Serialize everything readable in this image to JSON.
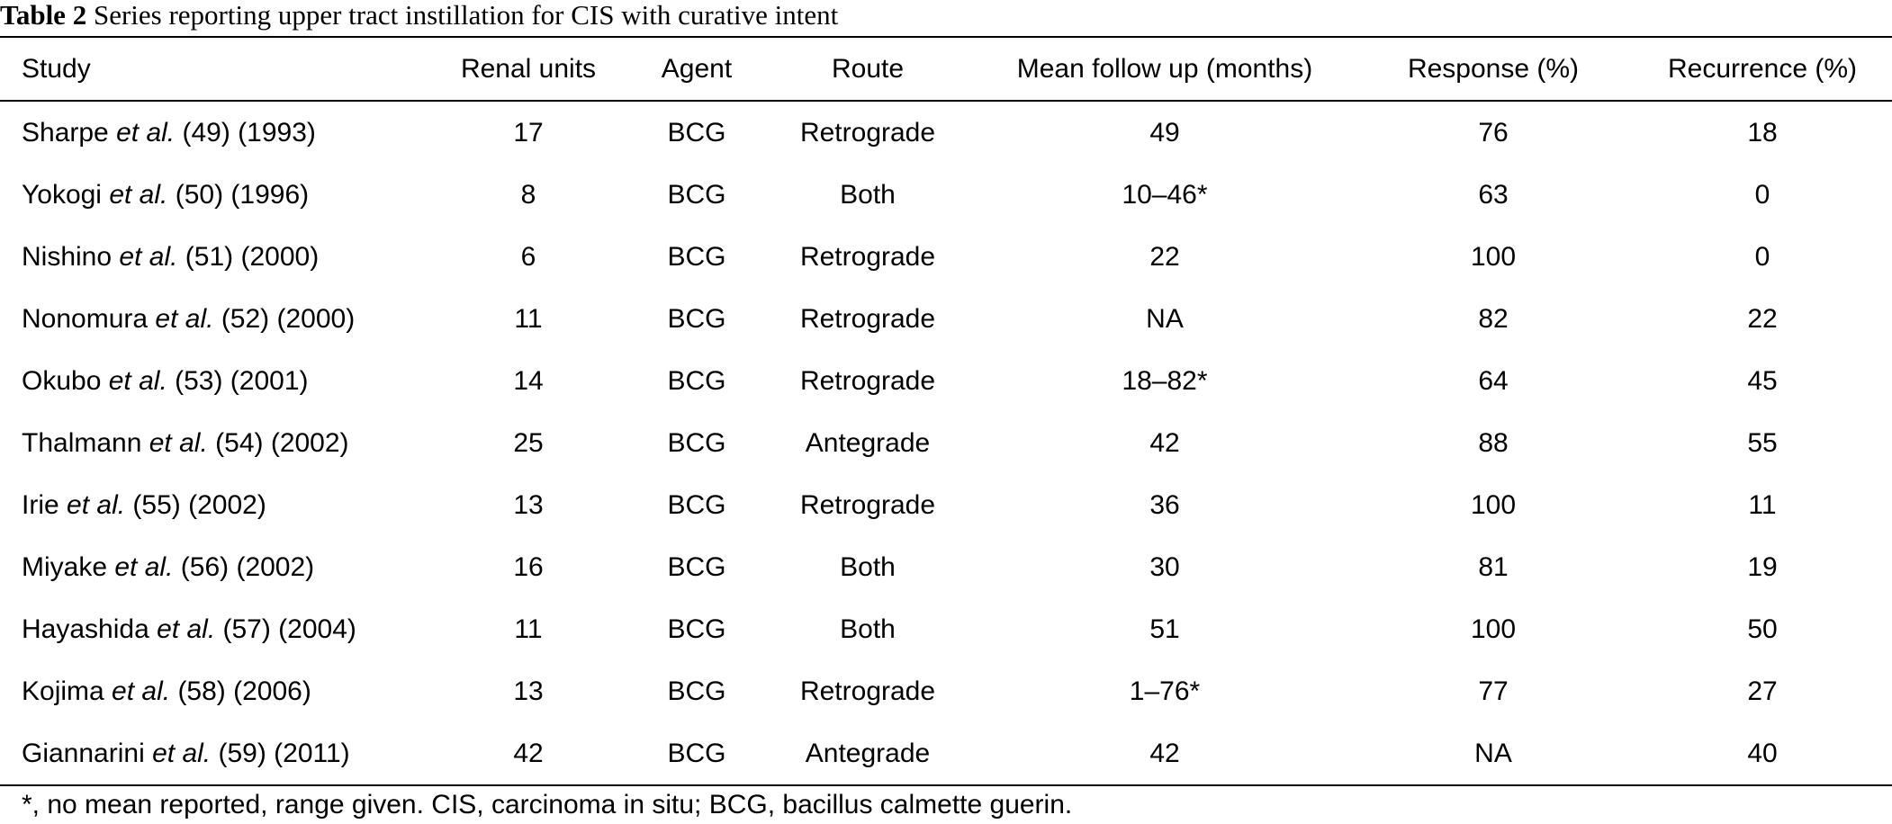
{
  "caption": {
    "label": "Table 2",
    "text": "Series reporting upper tract instillation for CIS with curative intent"
  },
  "table": {
    "headers": [
      "Study",
      "Renal units",
      "Agent",
      "Route",
      "Mean follow up (months)",
      "Response (%)",
      "Recurrence (%)"
    ],
    "rows": [
      {
        "author": "Sharpe",
        "etal": "et al.",
        "ref": "(49) (1993)",
        "renal_units": "17",
        "agent": "BCG",
        "route": "Retrograde",
        "follow_up": "49",
        "response": "76",
        "recurrence": "18"
      },
      {
        "author": "Yokogi",
        "etal": "et al.",
        "ref": "(50) (1996)",
        "renal_units": "8",
        "agent": "BCG",
        "route": "Both",
        "follow_up": "10–46*",
        "response": "63",
        "recurrence": "0"
      },
      {
        "author": "Nishino",
        "etal": "et al.",
        "ref": "(51) (2000)",
        "renal_units": "6",
        "agent": "BCG",
        "route": "Retrograde",
        "follow_up": "22",
        "response": "100",
        "recurrence": "0"
      },
      {
        "author": "Nonomura",
        "etal": "et al.",
        "ref": "(52) (2000)",
        "renal_units": "11",
        "agent": "BCG",
        "route": "Retrograde",
        "follow_up": "NA",
        "response": "82",
        "recurrence": "22"
      },
      {
        "author": "Okubo",
        "etal": "et al.",
        "ref": "(53) (2001)",
        "renal_units": "14",
        "agent": "BCG",
        "route": "Retrograde",
        "follow_up": "18–82*",
        "response": "64",
        "recurrence": "45"
      },
      {
        "author": "Thalmann",
        "etal": "et al.",
        "ref": "(54) (2002)",
        "renal_units": "25",
        "agent": "BCG",
        "route": "Antegrade",
        "follow_up": "42",
        "response": "88",
        "recurrence": "55"
      },
      {
        "author": "Irie",
        "etal": "et al.",
        "ref": "(55) (2002)",
        "renal_units": "13",
        "agent": "BCG",
        "route": "Retrograde",
        "follow_up": "36",
        "response": "100",
        "recurrence": "11"
      },
      {
        "author": "Miyake",
        "etal": "et al.",
        "ref": "(56) (2002)",
        "renal_units": "16",
        "agent": "BCG",
        "route": "Both",
        "follow_up": "30",
        "response": "81",
        "recurrence": "19"
      },
      {
        "author": "Hayashida",
        "etal": "et al.",
        "ref": "(57) (2004)",
        "renal_units": "11",
        "agent": "BCG",
        "route": "Both",
        "follow_up": "51",
        "response": "100",
        "recurrence": "50"
      },
      {
        "author": "Kojima",
        "etal": "et al.",
        "ref": "(58) (2006)",
        "renal_units": "13",
        "agent": "BCG",
        "route": "Retrograde",
        "follow_up": "1–76*",
        "response": "77",
        "recurrence": "27"
      },
      {
        "author": "Giannarini",
        "etal": "et al.",
        "ref": "(59) (2011)",
        "renal_units": "42",
        "agent": "BCG",
        "route": "Antegrade",
        "follow_up": "42",
        "response": "NA",
        "recurrence": "40"
      }
    ]
  },
  "footnote": "*, no mean reported, range given. CIS, carcinoma in situ; BCG, bacillus calmette guerin."
}
